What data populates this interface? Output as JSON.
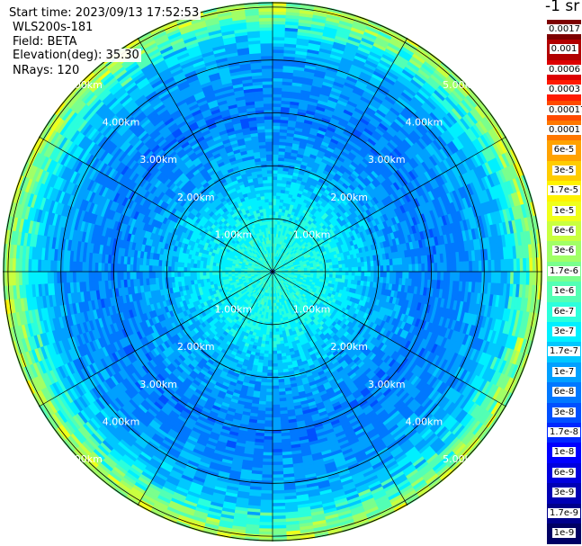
{
  "info": {
    "start_time": "Start time: 2023/09/13 17:52:53",
    "instrument": "WLS200s-181",
    "field": "Field: BETA",
    "elevation": "Elevation(deg): 35.30",
    "nrays": "NRays: 120"
  },
  "colorbar": {
    "unit": "-1 sr",
    "labels": [
      "0.0017",
      "0.001",
      "0.0006",
      "0.0003",
      "0.00017",
      "0.0001",
      "6e-5",
      "3e-5",
      "1.7e-5",
      "1e-5",
      "6e-6",
      "3e-6",
      "1.7e-6",
      "1e-6",
      "6e-7",
      "3e-7",
      "1.7e-7",
      "1e-7",
      "6e-8",
      "3e-8",
      "1.7e-8",
      "1e-8",
      "6e-9",
      "3e-9",
      "1.7e-9",
      "1e-9"
    ],
    "colors": [
      "#7e0000",
      "#b20000",
      "#dd0000",
      "#ff1a00",
      "#ff4a00",
      "#ff7700",
      "#ffa200",
      "#ffcc00",
      "#fff200",
      "#f0ff1a",
      "#c9ff3f",
      "#a1ff66",
      "#7aff8d",
      "#53ffb4",
      "#2bffdc",
      "#00f0ff",
      "#00c8ff",
      "#00a0ff",
      "#0078ff",
      "#0050ff",
      "#0028ff",
      "#0000ff",
      "#0000dd",
      "#0000b4",
      "#00008b",
      "#000064"
    ]
  },
  "chart_data": {
    "type": "heatmap",
    "projection": "polar (PPI)",
    "field": "BETA",
    "unit": "-1 sr",
    "scale": "log",
    "range_rings_km": [
      1.0,
      2.0,
      3.0,
      4.0,
      5.0
    ],
    "ring_labels": [
      "1.00km",
      "2.00km",
      "3.00km",
      "4.00km",
      "5.00km"
    ],
    "max_range_km": 5.1,
    "spokes_deg": [
      0,
      30,
      60,
      90,
      120,
      150,
      180,
      210,
      240,
      270,
      300,
      330
    ],
    "nrays": 120,
    "radial_profile": [
      {
        "range_km": 0.0,
        "log10_beta": -6.2
      },
      {
        "range_km": 1.0,
        "log10_beta": -6.4
      },
      {
        "range_km": 2.0,
        "log10_beta": -6.9
      },
      {
        "range_km": 3.0,
        "log10_beta": -7.2
      },
      {
        "range_km": 4.0,
        "log10_beta": -7.0
      },
      {
        "range_km": 4.6,
        "log10_beta": -6.6
      },
      {
        "range_km": 5.0,
        "log10_beta": -5.6
      }
    ]
  }
}
